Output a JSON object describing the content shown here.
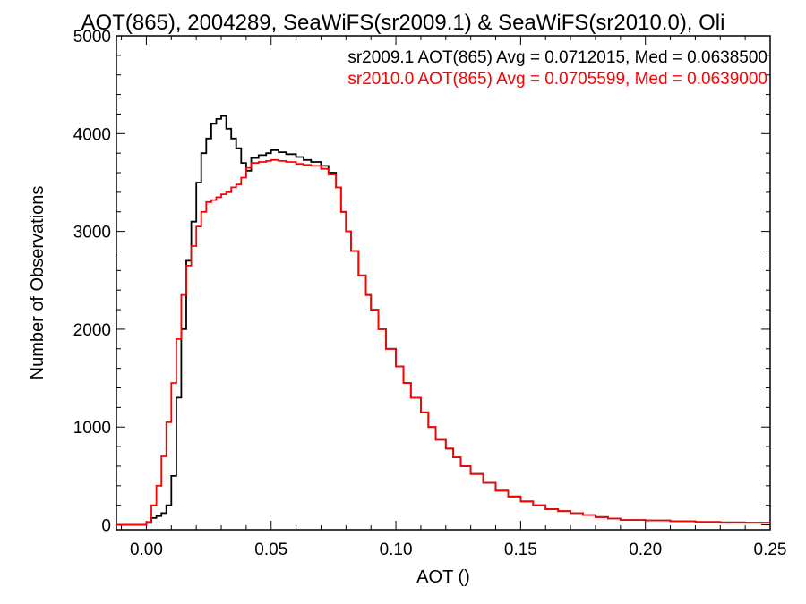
{
  "chart_data": {
    "type": "line",
    "title": "AOT(865), 2004289, SeaWiFS(sr2009.1) & SeaWiFS(sr2010.0), Oli",
    "xlabel": "AOT ()",
    "ylabel": "Number of Observations",
    "xlim": [
      -0.012,
      0.25
    ],
    "ylim": [
      -50,
      5000
    ],
    "x_ticks": [
      0.0,
      0.05,
      0.1,
      0.15,
      0.2,
      0.25
    ],
    "x_tick_labels": [
      "0.00",
      "0.05",
      "0.10",
      "0.15",
      "0.20",
      "0.25"
    ],
    "y_ticks": [
      0,
      1000,
      2000,
      3000,
      4000,
      5000
    ],
    "y_tick_labels": [
      "0",
      "1000",
      "2000",
      "3000",
      "4000",
      "5000"
    ],
    "grid": false,
    "legend_placement": "top-right",
    "step": true,
    "x": [
      -0.012,
      -0.01,
      -0.005,
      0.0,
      0.002,
      0.004,
      0.006,
      0.008,
      0.01,
      0.012,
      0.014,
      0.016,
      0.018,
      0.02,
      0.022,
      0.024,
      0.026,
      0.028,
      0.03,
      0.032,
      0.034,
      0.036,
      0.038,
      0.04,
      0.042,
      0.045,
      0.048,
      0.05,
      0.053,
      0.056,
      0.06,
      0.063,
      0.066,
      0.07,
      0.073,
      0.076,
      0.078,
      0.08,
      0.082,
      0.085,
      0.088,
      0.09,
      0.093,
      0.096,
      0.1,
      0.103,
      0.106,
      0.11,
      0.113,
      0.116,
      0.12,
      0.123,
      0.126,
      0.13,
      0.135,
      0.14,
      0.145,
      0.15,
      0.155,
      0.16,
      0.165,
      0.17,
      0.175,
      0.18,
      0.185,
      0.19,
      0.2,
      0.21,
      0.22,
      0.23,
      0.24,
      0.25
    ],
    "series": [
      {
        "name": "sr2009.1",
        "color": "#000000",
        "values": [
          0,
          0,
          0,
          20,
          70,
          90,
          120,
          200,
          500,
          1300,
          2000,
          2700,
          3100,
          3500,
          3800,
          3950,
          4100,
          4150,
          4180,
          4050,
          3950,
          3850,
          3700,
          3620,
          3750,
          3780,
          3800,
          3830,
          3810,
          3790,
          3760,
          3730,
          3710,
          3670,
          3600,
          3450,
          3200,
          3000,
          2800,
          2550,
          2350,
          2200,
          2000,
          1800,
          1620,
          1450,
          1300,
          1150,
          1000,
          870,
          780,
          690,
          600,
          520,
          430,
          350,
          290,
          240,
          200,
          160,
          140,
          120,
          100,
          80,
          65,
          50,
          45,
          38,
          30,
          25,
          22,
          20
        ]
      },
      {
        "name": "sr2010.0",
        "color": "#ff0000",
        "values": [
          0,
          0,
          0,
          30,
          200,
          400,
          700,
          1050,
          1450,
          1900,
          2350,
          2650,
          2850,
          3050,
          3200,
          3300,
          3320,
          3350,
          3380,
          3400,
          3450,
          3480,
          3550,
          3650,
          3700,
          3710,
          3720,
          3730,
          3720,
          3710,
          3690,
          3680,
          3670,
          3640,
          3580,
          3450,
          3200,
          3000,
          2800,
          2550,
          2350,
          2200,
          2000,
          1800,
          1620,
          1450,
          1300,
          1150,
          1000,
          870,
          780,
          690,
          600,
          520,
          430,
          350,
          290,
          240,
          200,
          160,
          140,
          120,
          100,
          80,
          65,
          50,
          45,
          38,
          30,
          25,
          22,
          20
        ]
      }
    ],
    "annotations": [
      {
        "text": "sr2009.1 AOT(865) Avg = 0.0712015, Med = 0.0638500",
        "color": "#000000"
      },
      {
        "text": "sr2010.0 AOT(865) Avg = 0.0705599, Med = 0.0639000",
        "color": "#ff0000"
      }
    ]
  }
}
